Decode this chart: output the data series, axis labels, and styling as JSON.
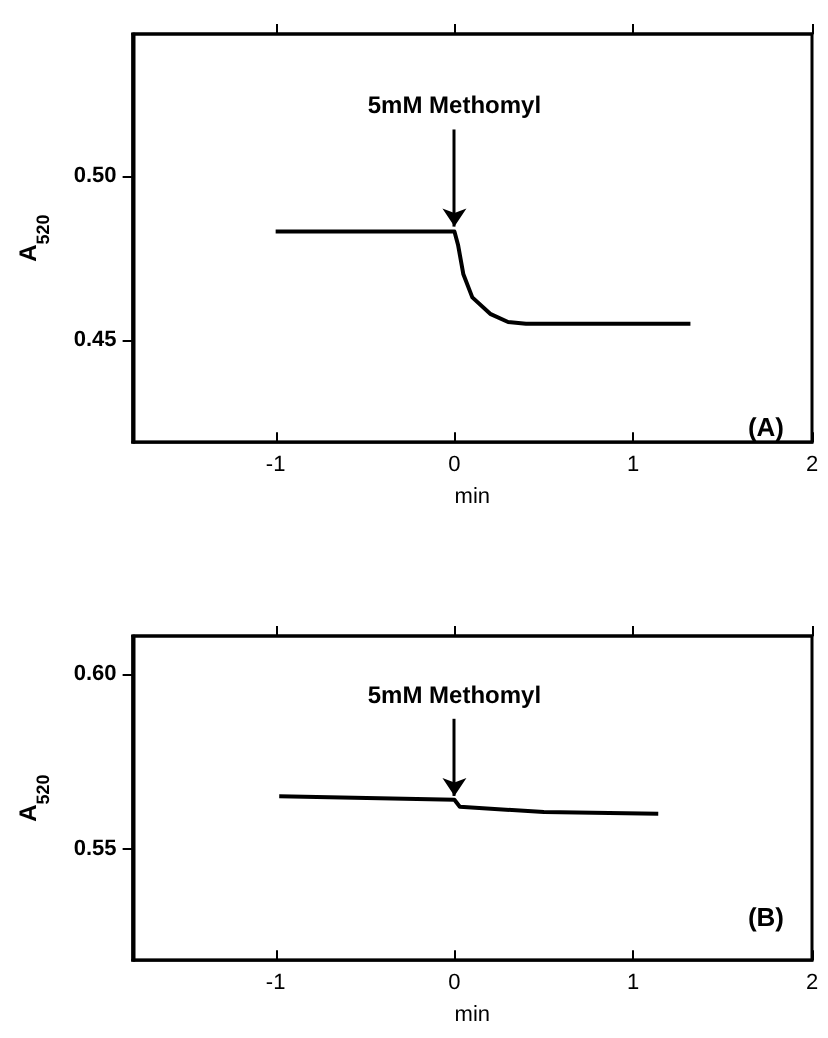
{
  "chart_data": [
    {
      "type": "line",
      "xlabel": "min",
      "ylabel": "A$_{520}$",
      "x": [
        -1,
        0,
        0.02,
        0.05,
        0.1,
        0.2,
        0.3,
        0.4,
        1.32
      ],
      "values": [
        0.483,
        0.483,
        0.479,
        0.47,
        0.463,
        0.458,
        0.4555,
        0.455,
        0.455
      ],
      "color": "#000000",
      "xlim": [
        -1.8,
        2
      ],
      "ylim": [
        0.419,
        0.543
      ],
      "xticks": [
        -1,
        0,
        1,
        2
      ],
      "yticks": [
        {
          "value": 0.5,
          "label": "0.50"
        },
        {
          "value": 0.45,
          "label": "0.45"
        }
      ],
      "grid": false,
      "marker": "none",
      "line_style": "solid",
      "annotations": [
        {
          "text": "5mM Methomyl",
          "x": 0,
          "y": 0.483
        },
        "(A)"
      ]
    },
    {
      "type": "line",
      "xlabel": "min",
      "ylabel": "A$_{520}$",
      "x": [
        -0.98,
        0,
        0.03,
        0.5,
        1.14
      ],
      "values": [
        0.565,
        0.564,
        0.562,
        0.5605,
        0.56
      ],
      "color": "#000000",
      "xlim": [
        -1.8,
        2
      ],
      "ylim": [
        0.518,
        0.611
      ],
      "xticks": [
        -1,
        0,
        1,
        2
      ],
      "yticks": [
        {
          "value": 0.6,
          "label": "0.60"
        },
        {
          "value": 0.55,
          "label": "0.55"
        }
      ],
      "grid": false,
      "marker": "none",
      "line_style": "solid",
      "annotations": [
        {
          "text": "5mM Methomyl",
          "x": 0,
          "y": 0.564
        },
        "(B)"
      ]
    }
  ]
}
